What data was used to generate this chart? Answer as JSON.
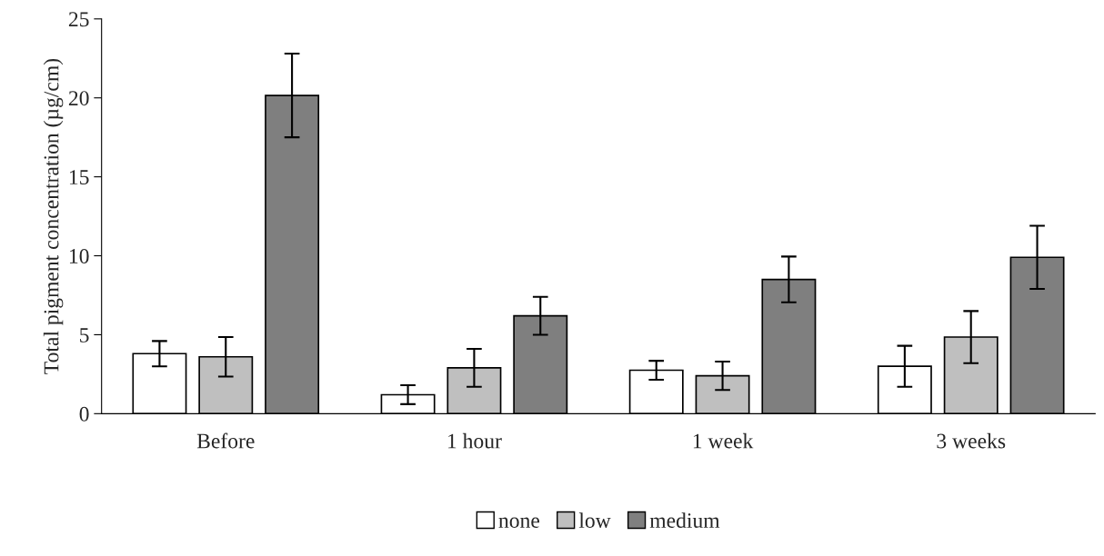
{
  "chart_data": {
    "type": "bar",
    "ylabel": "Total pigment concentration (µg/cm)",
    "categories": [
      "Before",
      "1 hour",
      "1 week",
      "3 weeks"
    ],
    "series": [
      {
        "name": "none",
        "color": "#ffffff",
        "values": [
          3.8,
          1.2,
          2.75,
          3.0
        ],
        "errors": [
          0.8,
          0.6,
          0.6,
          1.3
        ]
      },
      {
        "name": "low",
        "color": "#bfbfbf",
        "values": [
          3.6,
          2.9,
          2.4,
          4.85
        ],
        "errors": [
          1.25,
          1.2,
          0.9,
          1.65
        ]
      },
      {
        "name": "medium",
        "color": "#7f7f7f",
        "values": [
          20.15,
          6.2,
          8.5,
          9.9
        ],
        "errors": [
          2.65,
          1.2,
          1.45,
          2.0
        ]
      }
    ],
    "ylim": [
      0,
      25
    ],
    "yticks": [
      0,
      5,
      10,
      15,
      20,
      25
    ],
    "grid": false,
    "legend": "bottom"
  }
}
